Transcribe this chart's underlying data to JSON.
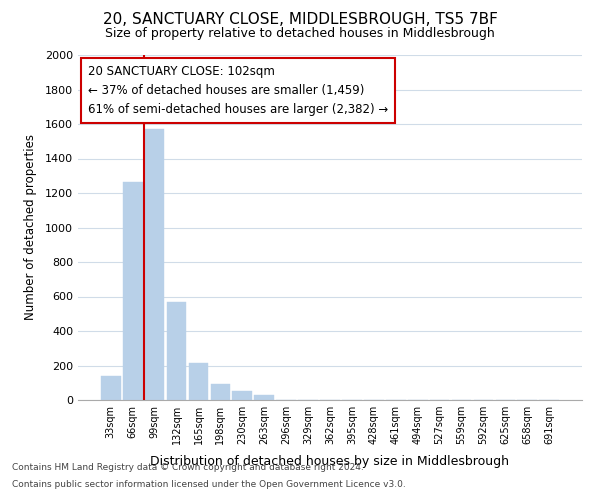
{
  "title": "20, SANCTUARY CLOSE, MIDDLESBROUGH, TS5 7BF",
  "subtitle": "Size of property relative to detached houses in Middlesbrough",
  "xlabel": "Distribution of detached houses by size in Middlesbrough",
  "ylabel": "Number of detached properties",
  "categories": [
    "33sqm",
    "66sqm",
    "99sqm",
    "132sqm",
    "165sqm",
    "198sqm",
    "230sqm",
    "263sqm",
    "296sqm",
    "329sqm",
    "362sqm",
    "395sqm",
    "428sqm",
    "461sqm",
    "494sqm",
    "527sqm",
    "559sqm",
    "592sqm",
    "625sqm",
    "658sqm",
    "691sqm"
  ],
  "values": [
    140,
    1265,
    1570,
    570,
    215,
    95,
    50,
    30,
    0,
    0,
    0,
    0,
    0,
    0,
    0,
    0,
    0,
    0,
    0,
    0,
    0
  ],
  "bar_color": "#b8d0e8",
  "annotation_line1": "20 SANCTUARY CLOSE: 102sqm",
  "annotation_line2": "← 37% of detached houses are smaller (1,459)",
  "annotation_line3": "61% of semi-detached houses are larger (2,382) →",
  "vline_x": 1.5,
  "ylim": [
    0,
    2000
  ],
  "yticks": [
    0,
    200,
    400,
    600,
    800,
    1000,
    1200,
    1400,
    1600,
    1800,
    2000
  ],
  "footer_line1": "Contains HM Land Registry data © Crown copyright and database right 2024.",
  "footer_line2": "Contains public sector information licensed under the Open Government Licence v3.0.",
  "bg_color": "#ffffff",
  "plot_bg_color": "#ffffff",
  "grid_color": "#d0dce8",
  "annotation_box_color": "#ffffff",
  "annotation_box_edge": "#cc0000",
  "vline_color": "#cc0000"
}
